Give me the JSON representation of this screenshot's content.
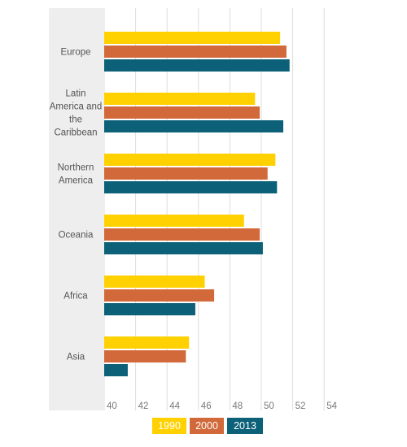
{
  "chart_data": {
    "type": "bar",
    "orientation": "horizontal",
    "categories": [
      [
        "Europe"
      ],
      [
        "Latin",
        "America and",
        "the",
        "Caribbean"
      ],
      [
        "Northern",
        "America"
      ],
      [
        "Oceania"
      ],
      [
        "Africa"
      ],
      [
        "Asia"
      ]
    ],
    "series": [
      {
        "name": "1990",
        "color": "#FFD100",
        "values": [
          51.2,
          49.6,
          50.9,
          48.9,
          46.4,
          45.4
        ]
      },
      {
        "name": "2000",
        "color": "#D2693A",
        "values": [
          51.6,
          49.9,
          50.4,
          49.9,
          47.0,
          45.2
        ]
      },
      {
        "name": "2013",
        "color": "#0C6178",
        "values": [
          51.8,
          51.4,
          51.0,
          50.1,
          45.8,
          41.5
        ]
      }
    ],
    "xlim": [
      40,
      54
    ],
    "xticks": [
      40,
      42,
      44,
      46,
      48,
      50,
      52,
      54
    ],
    "grid": true,
    "legend_position": "bottom"
  }
}
